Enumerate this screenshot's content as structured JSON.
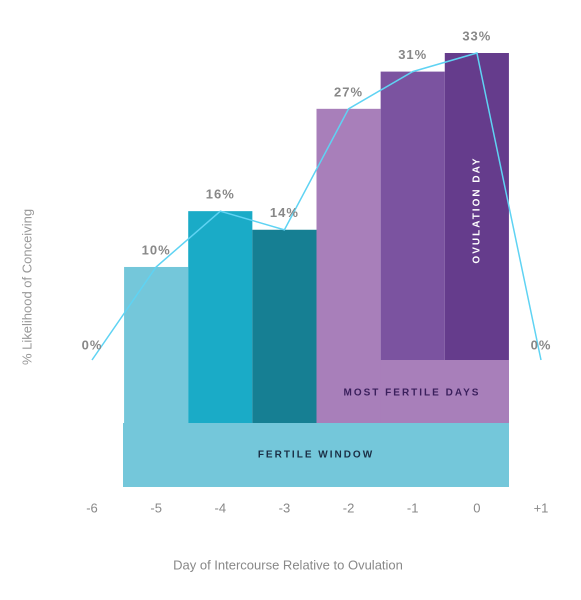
{
  "chart_data": {
    "type": "bar",
    "x": [
      -6,
      -5,
      -4,
      -3,
      -2,
      -1,
      0,
      1
    ],
    "values": [
      0,
      10,
      16,
      14,
      27,
      31,
      33,
      0
    ],
    "value_labels": [
      "0%",
      "10%",
      "16%",
      "14%",
      "27%",
      "31%",
      "33%",
      "0%"
    ],
    "bar_colors": [
      null,
      "#74c7da",
      "#1aabc7",
      "#167f93",
      "#a87fba",
      "#7b53a0",
      "#653c8c",
      null
    ],
    "line_color": "#5fd3f3",
    "xticks": [
      -6,
      -5,
      -4,
      -3,
      -2,
      -1,
      0,
      {
        "value": 1,
        "label": "+1"
      }
    ],
    "xlabel": "Day of Intercourse Relative to Ovulation",
    "ylabel": "% Likelihood of Conceiving",
    "annotations": [
      "FERTILE WINDOW",
      "MOST FERTILE DAYS",
      "OVULATION DAY"
    ]
  }
}
